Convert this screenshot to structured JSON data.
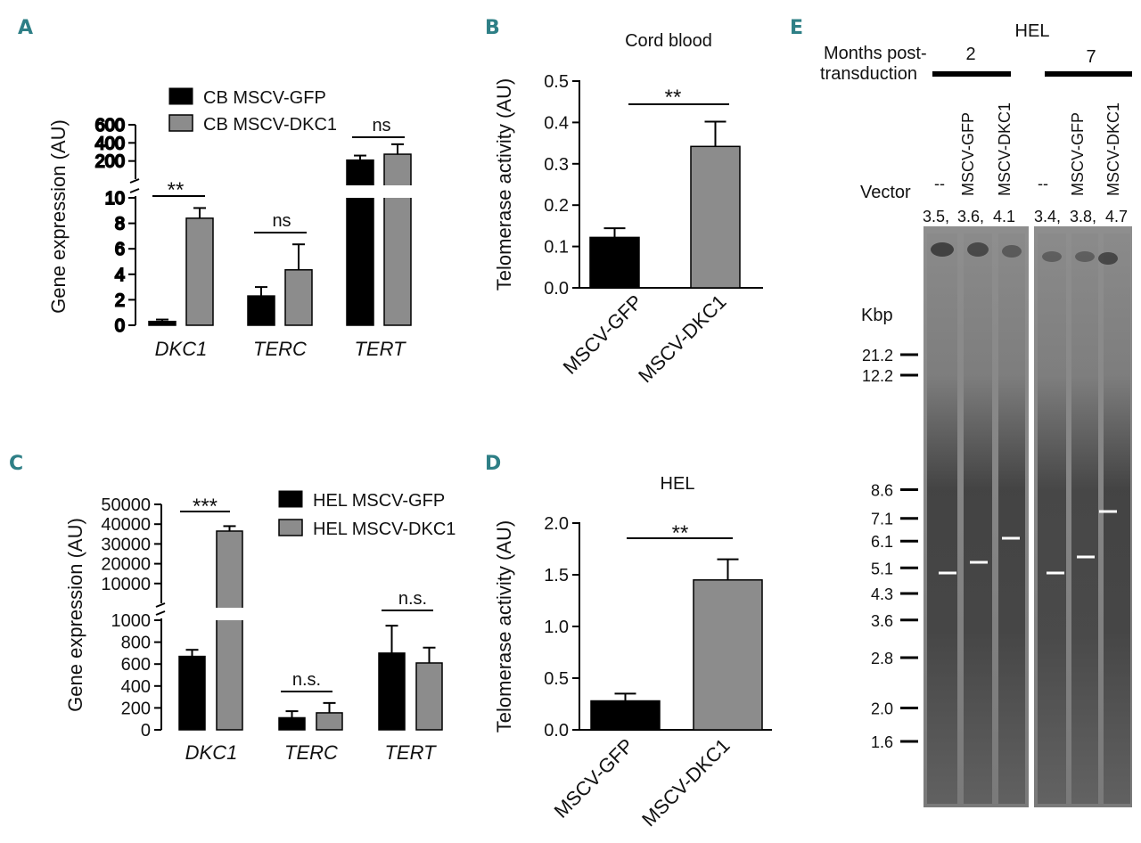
{
  "colors": {
    "panel_letter": "#2e7f86",
    "series_black": "#000000",
    "series_gray": "#8c8c8c"
  },
  "panel_letters": [
    "A",
    "B",
    "C",
    "D",
    "E"
  ],
  "chart_data": [
    {
      "panel": "A",
      "type": "bar",
      "title": "",
      "ylabel": "Gene expression (AU)",
      "xlabel": "",
      "categories": [
        "DKC1",
        "TERC",
        "TERT"
      ],
      "series": [
        {
          "name": "CB MSCV-GFP",
          "values": [
            0.3,
            2.3,
            210
          ],
          "errors": [
            0.15,
            0.7,
            50
          ]
        },
        {
          "name": "CB MSCV-DKC1",
          "values": [
            8.4,
            4.35,
            275
          ],
          "errors": [
            0.8,
            2.0,
            110
          ]
        }
      ],
      "axis_break": true,
      "lower_ylim": [
        0,
        10
      ],
      "lower_ticks": [
        "0",
        "2",
        "4",
        "6",
        "8",
        "10"
      ],
      "upper_ylim": [
        0,
        600
      ],
      "upper_ticks": [
        "200",
        "400",
        "600"
      ],
      "significance": [
        "**",
        "ns",
        "ns"
      ]
    },
    {
      "panel": "B",
      "type": "bar",
      "title": "Cord blood",
      "ylabel": "Telomerase activity (AU)",
      "xlabel": "",
      "categories": [
        "MSCV-GFP",
        "MSCV-DKC1"
      ],
      "values": [
        0.122,
        0.342
      ],
      "errors": [
        0.022,
        0.06
      ],
      "ylim": [
        0,
        0.5
      ],
      "ticks": [
        "0.0",
        "0.1",
        "0.2",
        "0.3",
        "0.4",
        "0.5"
      ],
      "significance": "**"
    },
    {
      "panel": "C",
      "type": "bar",
      "title": "",
      "ylabel": "Gene expression (AU)",
      "xlabel": "",
      "categories": [
        "DKC1",
        "TERC",
        "TERT"
      ],
      "series": [
        {
          "name": "HEL MSCV-GFP",
          "values": [
            670,
            110,
            700
          ],
          "errors": [
            60,
            60,
            250
          ]
        },
        {
          "name": "HEL MSCV-DKC1",
          "values": [
            36500,
            155,
            610
          ],
          "errors": [
            2500,
            90,
            140
          ]
        }
      ],
      "axis_break": true,
      "lower_ylim": [
        0,
        1000
      ],
      "lower_ticks": [
        "0",
        "200",
        "400",
        "600",
        "800",
        "1000"
      ],
      "upper_ylim": [
        0,
        50000
      ],
      "upper_ticks": [
        "10000",
        "20000",
        "30000",
        "40000",
        "50000"
      ],
      "significance": [
        "***",
        "n.s.",
        "n.s."
      ]
    },
    {
      "panel": "D",
      "type": "bar",
      "title": "HEL",
      "ylabel": "Telomerase activity (AU)",
      "xlabel": "",
      "categories": [
        "MSCV-GFP",
        "MSCV-DKC1"
      ],
      "values": [
        0.28,
        1.45
      ],
      "errors": [
        0.07,
        0.2
      ],
      "ylim": [
        0,
        2.0
      ],
      "ticks": [
        "0.0",
        "0.5",
        "1.0",
        "1.5",
        "2.0"
      ],
      "significance": "**"
    }
  ],
  "gel": {
    "cell_line": "HEL",
    "months_label_line1": "Months post-",
    "months_label_line2": "transduction",
    "month_groups": [
      "2",
      "7"
    ],
    "vector_label": "Vector",
    "lanes": [
      {
        "vector": "--",
        "telomere_length": "3.5,"
      },
      {
        "vector": "MSCV-GFP",
        "telomere_length": "3.6,"
      },
      {
        "vector": "MSCV-DKC1",
        "telomere_length": "4.1"
      },
      {
        "vector": "--",
        "telomere_length": "3.4,"
      },
      {
        "vector": "MSCV-GFP",
        "telomere_length": "3.8,"
      },
      {
        "vector": "MSCV-DKC1",
        "telomere_length": "4.7"
      }
    ],
    "kbp_label": "Kbp",
    "markers": [
      "21.2",
      "12.2",
      "8.6",
      "7.1",
      "6.1",
      "5.1",
      "4.3",
      "3.6",
      "2.8",
      "2.0",
      "1.6"
    ]
  }
}
